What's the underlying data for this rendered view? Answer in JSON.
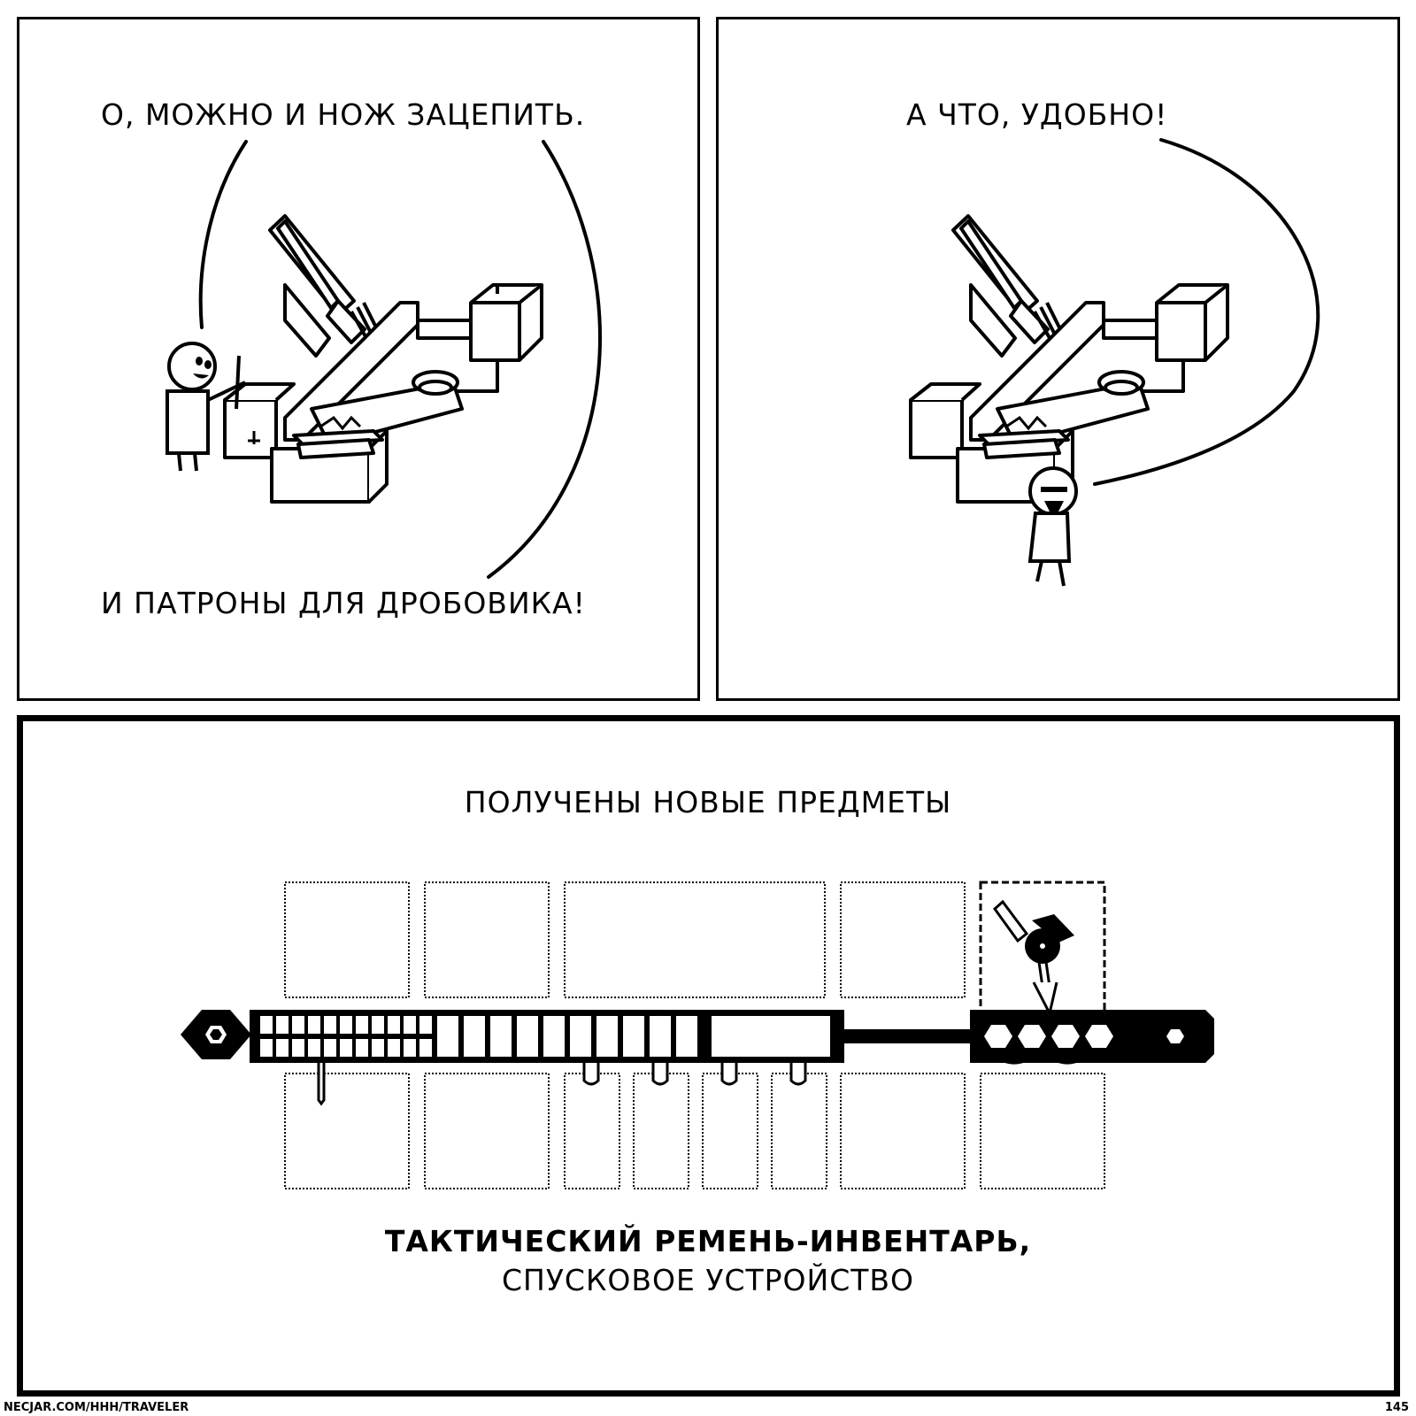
{
  "panel1": {
    "caption_top": "О, МОЖНО И НОЖ ЗАЦЕПИТЬ.",
    "caption_bottom": "И ПАТРОНЫ ДЛЯ ДРОБОВИКА!"
  },
  "panel2": {
    "caption": "А ЧТО, УДОБНО!"
  },
  "panel3": {
    "heading": "ПОЛУЧЕНЫ НОВЫЕ ПРЕДМЕТЫ",
    "item_line1": "ТАКТИЧЕСКИЙ РЕМЕНЬ-ИНВЕНТАРЬ,",
    "item_line2": "СПУСКОВОЕ УСТРОЙСТВО"
  },
  "footer": {
    "url": "NECJAR.COM/HHH/TRAVELER",
    "page_number": "145"
  }
}
